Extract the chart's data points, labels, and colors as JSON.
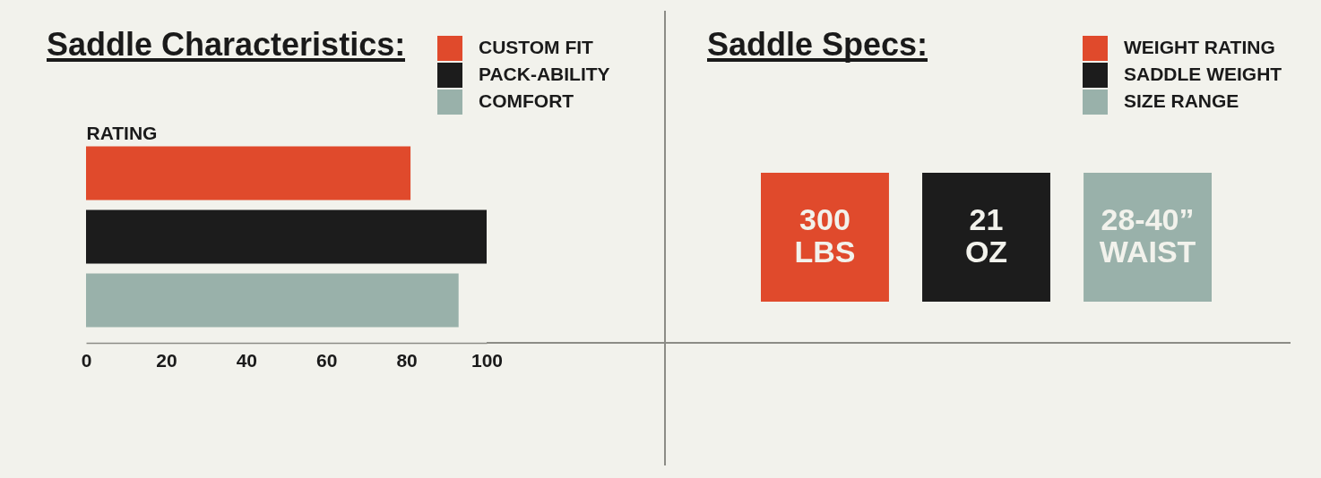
{
  "chart_data": [
    {
      "type": "bar",
      "orientation": "horizontal",
      "title": "Saddle Characteristics:",
      "xlabel": "RATING",
      "categories": [
        null
      ],
      "series": [
        {
          "name": "CUSTOM FIT",
          "color": "#e04a2c",
          "values": [
            81
          ]
        },
        {
          "name": "PACK-ABILITY",
          "color": "#1c1c1c",
          "values": [
            100
          ]
        },
        {
          "name": "COMFORT",
          "color": "#99b1aa",
          "values": [
            93
          ]
        }
      ],
      "xlim": [
        0,
        100
      ],
      "xticks": [
        0,
        20,
        40,
        60,
        80,
        100
      ],
      "legend": "top right"
    },
    {
      "type": "other",
      "title": "Saddle Specs:",
      "categories": [
        "WEIGHT RATING",
        "SADDLE WEIGHT",
        "SIZE RANGE"
      ],
      "colors": [
        "#e04a2c",
        "#1c1c1c",
        "#99b1aa"
      ],
      "value_labels": [
        "300 LBS",
        "21 OZ",
        "28-40” WAIST"
      ]
    }
  ]
}
